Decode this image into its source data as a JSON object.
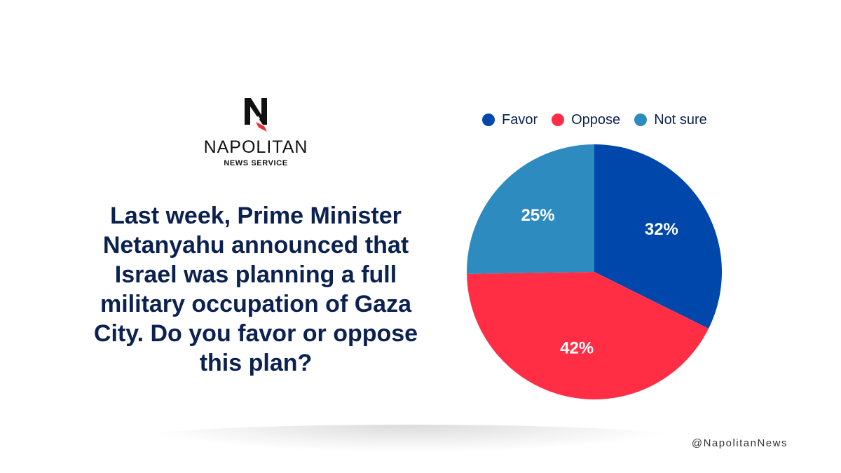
{
  "logo": {
    "brand": "NAPOLITAN",
    "sub": "NEWS SERVICE"
  },
  "question": "Last week, Prime Minister Netanyahu announced that Israel was planning a full military occupation of Gaza City. Do you favor or oppose this plan?",
  "social_handle": "@NapolitanNews",
  "colors": {
    "question_text": "#0b2150",
    "favor": "#0047ab",
    "oppose": "#ff2e45",
    "not_sure": "#2e8bc0"
  },
  "chart_data": {
    "type": "pie",
    "title": "",
    "categories": [
      "Favor",
      "Oppose",
      "Not sure"
    ],
    "values": [
      32,
      42,
      25
    ],
    "labels": [
      "32%",
      "42%",
      "25%"
    ],
    "colors": [
      "#0047ab",
      "#ff2e45",
      "#2e8bc0"
    ],
    "legend_position": "top"
  }
}
